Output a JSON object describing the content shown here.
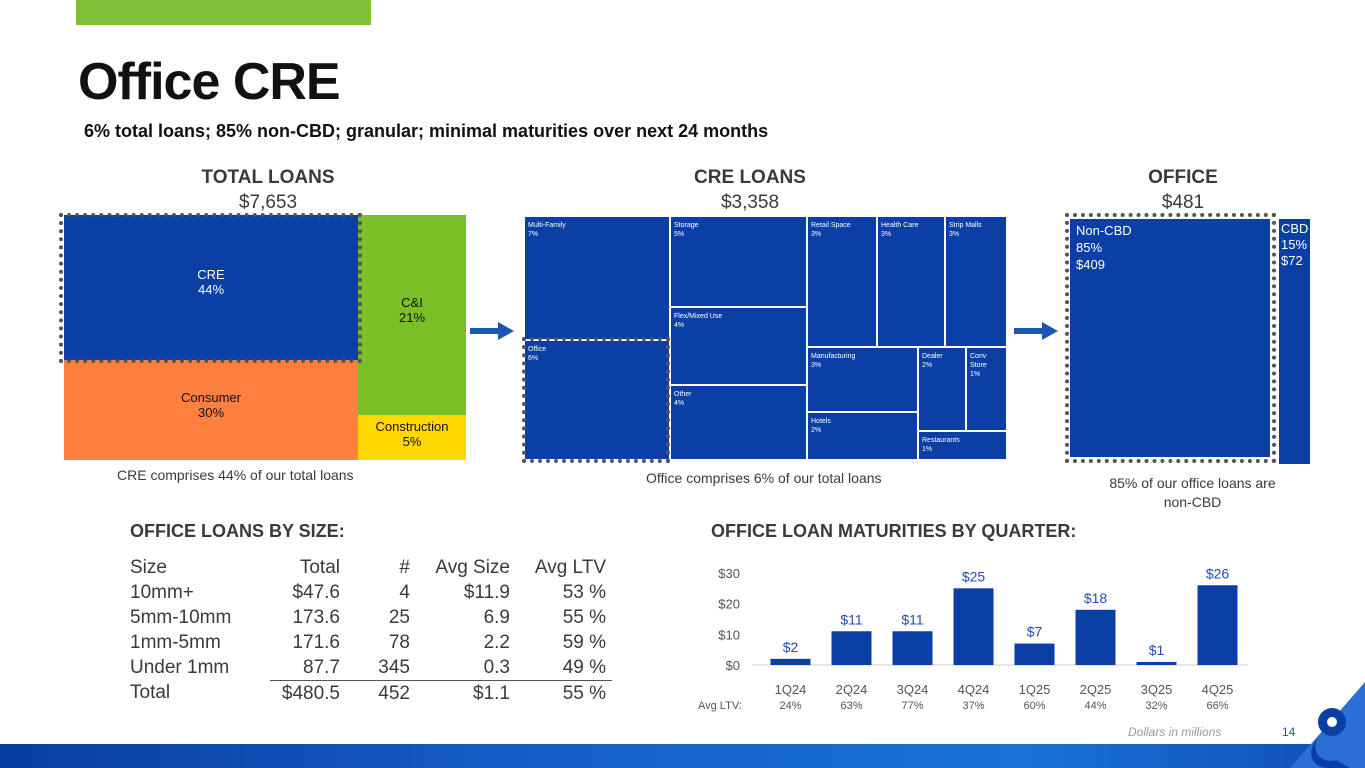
{
  "header": {
    "title": "Office CRE",
    "subtitle": "6% total loans; 85% non-CBD; granular; minimal maturities over next 24 months"
  },
  "total_loans": {
    "heading": "TOTAL LOANS",
    "value": "$7,653",
    "segments": [
      {
        "name": "CRE",
        "pct": "44%",
        "color": "#0b3fa6"
      },
      {
        "name": "Consumer",
        "pct": "30%",
        "color": "#ff7f3f"
      },
      {
        "name": "C&I",
        "pct": "21%",
        "color": "#7bbf28"
      },
      {
        "name": "Construction",
        "pct": "5%",
        "color": "#ffd800"
      }
    ],
    "caption": "CRE comprises 44% of our total loans"
  },
  "cre_loans": {
    "heading": "CRE LOANS",
    "value": "$3,358",
    "segments": [
      {
        "name": "Multi-Family",
        "pct": "7%"
      },
      {
        "name": "Storage",
        "pct": "5%"
      },
      {
        "name": "Retail Space",
        "pct": "3%"
      },
      {
        "name": "Health Care",
        "pct": "3%"
      },
      {
        "name": "Strip Malls",
        "pct": "3%"
      },
      {
        "name": "Flex/Mixed Use",
        "pct": "4%"
      },
      {
        "name": "Office",
        "pct": "6%"
      },
      {
        "name": "Manufacturing",
        "pct": "3%"
      },
      {
        "name": "Dealer",
        "pct": "2%"
      },
      {
        "name": "Conv Store",
        "pct": "1%"
      },
      {
        "name": "Other",
        "pct": "4%"
      },
      {
        "name": "Hotels",
        "pct": "2%"
      },
      {
        "name": "Restaurants",
        "pct": "1%"
      }
    ],
    "caption": "Office comprises 6% of our total loans"
  },
  "office": {
    "heading": "OFFICE",
    "value": "$481",
    "non_cbd": {
      "name": "Non-CBD",
      "pct": "85%",
      "amount": "$409"
    },
    "cbd": {
      "name": "CBD",
      "pct": "15%",
      "amount": "$72"
    },
    "caption_line1": "85% of our office loans are",
    "caption_line2": "non-CBD"
  },
  "size_table": {
    "heading": "OFFICE LOANS BY SIZE:",
    "columns": [
      "Size",
      "Total",
      "#",
      "Avg Size",
      "Avg LTV"
    ],
    "rows": [
      [
        "10mm+",
        "$47.6",
        "4",
        "$11.9",
        "53 %"
      ],
      [
        "5mm-10mm",
        "173.6",
        "25",
        "6.9",
        "55 %"
      ],
      [
        "1mm-5mm",
        "171.6",
        "78",
        "2.2",
        "59 %"
      ],
      [
        "Under 1mm",
        "87.7",
        "345",
        "0.3",
        "49 %"
      ],
      [
        "Total",
        "$480.5",
        "452",
        "$1.1",
        "55 %"
      ]
    ]
  },
  "chart_data": {
    "type": "bar",
    "title": "OFFICE LOAN MATURITIES BY QUARTER:",
    "categories": [
      "1Q24",
      "2Q24",
      "3Q24",
      "4Q24",
      "1Q25",
      "2Q25",
      "3Q25",
      "4Q25"
    ],
    "values": [
      2,
      11,
      11,
      25,
      7,
      18,
      1,
      26
    ],
    "data_labels": [
      "$2",
      "$11",
      "$11",
      "$25",
      "$7",
      "$18",
      "$1",
      "$26"
    ],
    "y_ticks": [
      "$0",
      "$10",
      "$20",
      "$30"
    ],
    "ylim": [
      0,
      30
    ],
    "ltv_label": "Avg LTV:",
    "avg_ltv": [
      "24%",
      "63%",
      "77%",
      "37%",
      "60%",
      "44%",
      "32%",
      "66%"
    ],
    "bar_color": "#0b3fa6",
    "label_color": "#1f4fb0"
  },
  "footer": {
    "note": "Dollars in millions",
    "page": "14"
  },
  "colors": {
    "accent_green": "#7fbf36",
    "navy": "#0b3fa6",
    "arrow": "#1f56b3"
  }
}
